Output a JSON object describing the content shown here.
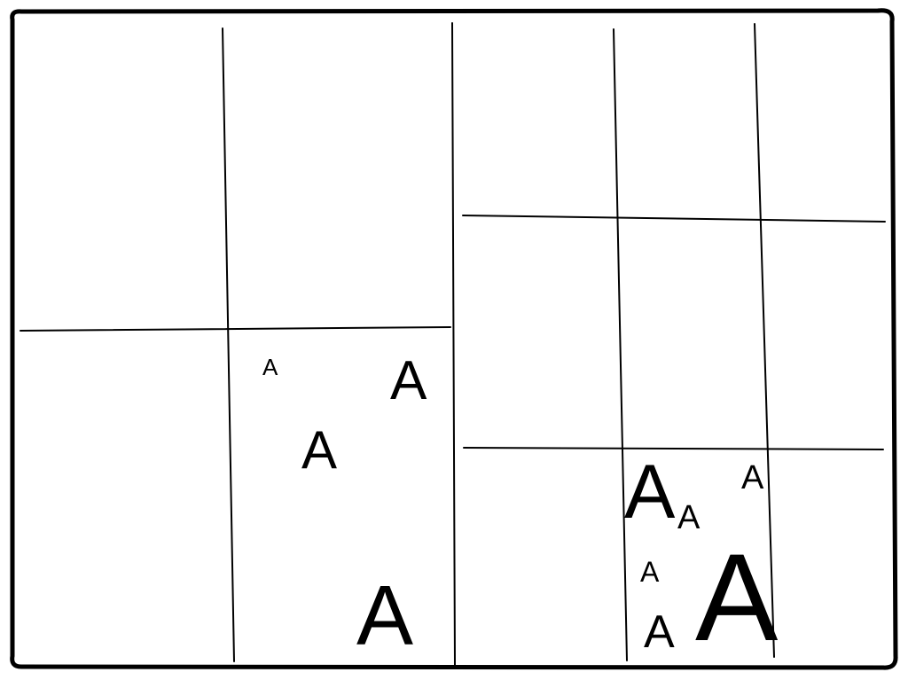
{
  "diagram": {
    "stroke_color": "#000000",
    "background_color": "#ffffff",
    "left_panel": {
      "grid": "2x2",
      "letters": [
        "A",
        "A",
        "A",
        "A"
      ]
    },
    "right_panel": {
      "grid": "3x3",
      "letters": [
        "A",
        "A",
        "A",
        "A",
        "A",
        "A"
      ]
    }
  }
}
